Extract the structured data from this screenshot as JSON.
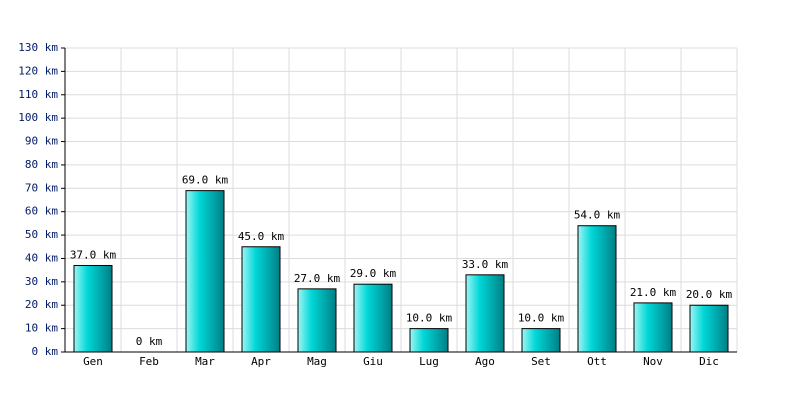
{
  "chart_data": {
    "type": "bar",
    "categories": [
      "Gen",
      "Feb",
      "Mar",
      "Apr",
      "Mag",
      "Giu",
      "Lug",
      "Ago",
      "Set",
      "Ott",
      "Nov",
      "Dic"
    ],
    "values": [
      37,
      0,
      69,
      45,
      27,
      29,
      10,
      33,
      10,
      54,
      21,
      20
    ],
    "value_labels": [
      "37.0 km",
      "0 km",
      "69.0 km",
      "45.0 km",
      "27.0 km",
      "29.0 km",
      "10.0 km",
      "33.0 km",
      "10.0 km",
      "54.0 km",
      "21.0 km",
      "20.0 km"
    ],
    "color": "#00c8c8",
    "ylim": [
      0,
      130
    ],
    "yticks": [
      {
        "value": 0,
        "label": "0 km"
      },
      {
        "value": 10,
        "label": "10 km"
      },
      {
        "value": 20,
        "label": "20 km"
      },
      {
        "value": 30,
        "label": "30 km"
      },
      {
        "value": 40,
        "label": "40 km"
      },
      {
        "value": 50,
        "label": "50 km"
      },
      {
        "value": 60,
        "label": "60 km"
      },
      {
        "value": 70,
        "label": "70 km"
      },
      {
        "value": 80,
        "label": "80 km"
      },
      {
        "value": 90,
        "label": "90 km"
      },
      {
        "value": 100,
        "label": "100 km"
      },
      {
        "value": 110,
        "label": "110 km"
      },
      {
        "value": 120,
        "label": "120 km"
      },
      {
        "value": 130,
        "label": "130 km"
      }
    ],
    "grid": true
  }
}
